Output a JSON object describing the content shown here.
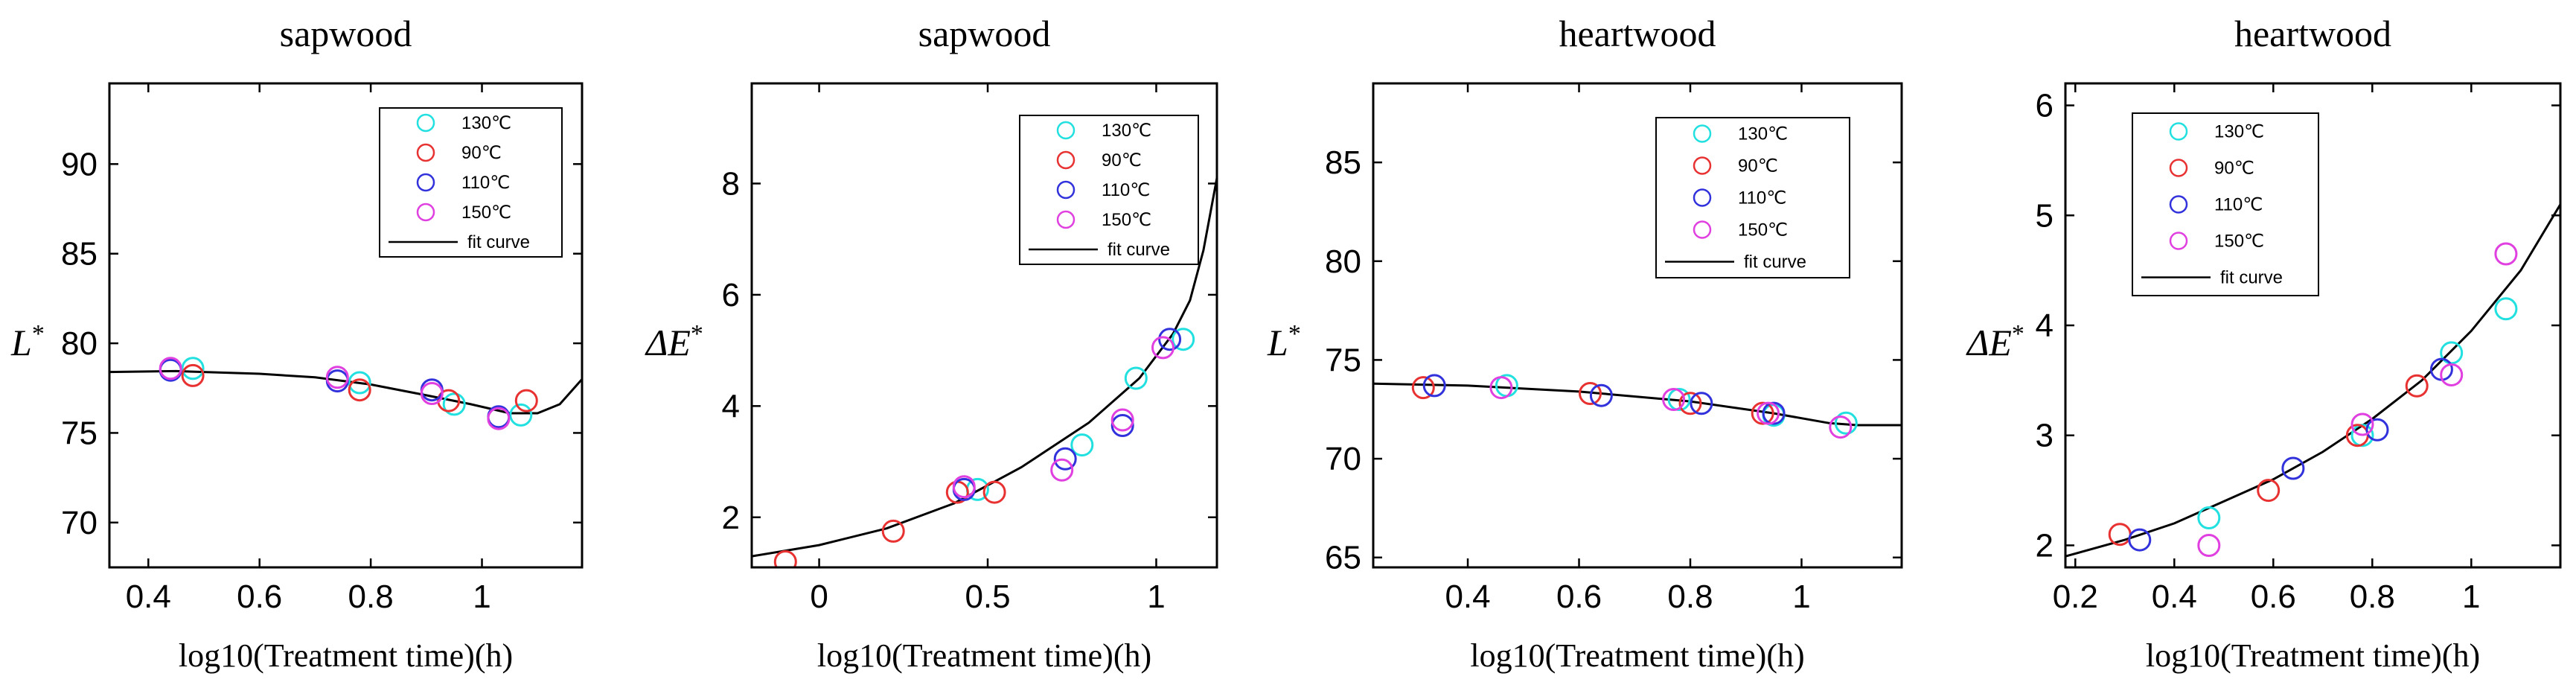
{
  "colors": {
    "130C": "#22e0e0",
    "90C": "#e83232",
    "110C": "#3232dc",
    "150C": "#e040e0",
    "fit": "#000000"
  },
  "chart_data": [
    {
      "type": "scatter",
      "title": "sapwood",
      "xlabel": "log10(Treatment time)(h)",
      "ylabel": "L",
      "ylabel_sup": "*",
      "xlim": [
        0.33,
        1.18
      ],
      "ylim": [
        67.5,
        94.5
      ],
      "xticks": [
        0.4,
        0.6,
        0.8,
        1.0
      ],
      "xtick_labels": [
        "0.4",
        "0.6",
        "0.8",
        "1"
      ],
      "yticks": [
        70,
        75,
        80,
        85,
        90
      ],
      "ytick_labels": [
        "70",
        "75",
        "80",
        "85",
        "90"
      ],
      "legend": [
        "130℃",
        "90℃",
        "110℃",
        "150℃",
        "fit curve"
      ],
      "series": [
        {
          "name": "130℃",
          "key": "130C",
          "points": [
            [
              0.48,
              78.6
            ],
            [
              0.78,
              77.8
            ],
            [
              0.95,
              76.6
            ],
            [
              1.07,
              76.0
            ]
          ]
        },
        {
          "name": "90℃",
          "key": "90C",
          "points": [
            [
              0.48,
              78.2
            ],
            [
              0.78,
              77.4
            ],
            [
              0.94,
              76.8
            ],
            [
              1.08,
              76.8
            ]
          ]
        },
        {
          "name": "110℃",
          "key": "110C",
          "points": [
            [
              0.44,
              78.5
            ],
            [
              0.74,
              77.9
            ],
            [
              0.91,
              77.4
            ],
            [
              1.03,
              75.9
            ]
          ]
        },
        {
          "name": "150℃",
          "key": "150C",
          "points": [
            [
              0.44,
              78.6
            ],
            [
              0.74,
              78.1
            ],
            [
              0.91,
              77.2
            ],
            [
              1.03,
              75.8
            ]
          ]
        }
      ],
      "fit_curve": [
        [
          0.33,
          78.4
        ],
        [
          0.45,
          78.45
        ],
        [
          0.6,
          78.3
        ],
        [
          0.7,
          78.1
        ],
        [
          0.8,
          77.7
        ],
        [
          0.9,
          77.1
        ],
        [
          0.98,
          76.6
        ],
        [
          1.05,
          76.1
        ],
        [
          1.1,
          76.1
        ],
        [
          1.14,
          76.6
        ],
        [
          1.18,
          78.0
        ]
      ]
    },
    {
      "type": "scatter",
      "title": "sapwood",
      "xlabel": "log10(Treatment time)(h)",
      "ylabel": "ΔE",
      "ylabel_sup": "*",
      "xlim": [
        -0.2,
        1.18
      ],
      "ylim": [
        1.1,
        9.8
      ],
      "xticks": [
        0.0,
        0.5,
        1.0
      ],
      "xtick_labels": [
        "0",
        "0.5",
        "1"
      ],
      "yticks": [
        2,
        4,
        6,
        8
      ],
      "ytick_labels": [
        "2",
        "4",
        "6",
        "8"
      ],
      "legend": [
        "130℃",
        "90℃",
        "110℃",
        "150℃",
        "fit curve"
      ],
      "series": [
        {
          "name": "130℃",
          "key": "130C",
          "points": [
            [
              0.47,
              2.5
            ],
            [
              0.78,
              3.3
            ],
            [
              0.94,
              4.5
            ],
            [
              1.08,
              5.2
            ]
          ]
        },
        {
          "name": "90℃",
          "key": "90C",
          "points": [
            [
              -0.1,
              1.2
            ],
            [
              0.22,
              1.75
            ],
            [
              0.41,
              2.45
            ],
            [
              0.52,
              2.45
            ]
          ]
        },
        {
          "name": "110℃",
          "key": "110C",
          "points": [
            [
              0.43,
              2.5
            ],
            [
              0.73,
              3.05
            ],
            [
              0.9,
              3.65
            ],
            [
              1.04,
              5.2
            ]
          ]
        },
        {
          "name": "150℃",
          "key": "150C",
          "points": [
            [
              0.43,
              2.55
            ],
            [
              0.72,
              2.85
            ],
            [
              0.9,
              3.75
            ],
            [
              1.02,
              5.05
            ]
          ]
        }
      ],
      "fit_curve": [
        [
          -0.2,
          1.3
        ],
        [
          0.0,
          1.5
        ],
        [
          0.2,
          1.8
        ],
        [
          0.4,
          2.25
        ],
        [
          0.6,
          2.9
        ],
        [
          0.8,
          3.7
        ],
        [
          0.95,
          4.5
        ],
        [
          1.05,
          5.3
        ],
        [
          1.1,
          5.9
        ],
        [
          1.14,
          6.8
        ],
        [
          1.18,
          8.1
        ]
      ]
    },
    {
      "type": "scatter",
      "title": "heartwood",
      "xlabel": "log10(Treatment time)(h)",
      "ylabel": "L",
      "ylabel_sup": "*",
      "xlim": [
        0.23,
        1.18
      ],
      "ylim": [
        64.5,
        89.0
      ],
      "xticks": [
        0.4,
        0.6,
        0.8,
        1.0
      ],
      "xtick_labels": [
        "0.4",
        "0.6",
        "0.8",
        "1"
      ],
      "yticks": [
        65,
        70,
        75,
        80,
        85
      ],
      "ytick_labels": [
        "65",
        "70",
        "75",
        "80",
        "85"
      ],
      "legend": [
        "130℃",
        "90℃",
        "110℃",
        "150℃",
        "fit curve"
      ],
      "series": [
        {
          "name": "130℃",
          "key": "130C",
          "points": [
            [
              0.47,
              73.7
            ],
            [
              0.78,
              73.0
            ],
            [
              0.95,
              72.2
            ],
            [
              1.08,
              71.8
            ]
          ]
        },
        {
          "name": "90℃",
          "key": "90C",
          "points": [
            [
              0.32,
              73.6
            ],
            [
              0.62,
              73.3
            ],
            [
              0.8,
              72.8
            ],
            [
              0.93,
              72.3
            ]
          ]
        },
        {
          "name": "110℃",
          "key": "110C",
          "points": [
            [
              0.34,
              73.7
            ],
            [
              0.64,
              73.2
            ],
            [
              0.82,
              72.8
            ],
            [
              0.95,
              72.3
            ]
          ]
        },
        {
          "name": "150℃",
          "key": "150C",
          "points": [
            [
              0.46,
              73.6
            ],
            [
              0.77,
              73.0
            ],
            [
              0.94,
              72.3
            ],
            [
              1.07,
              71.6
            ]
          ]
        }
      ],
      "fit_curve": [
        [
          0.23,
          73.8
        ],
        [
          0.4,
          73.7
        ],
        [
          0.6,
          73.4
        ],
        [
          0.8,
          72.9
        ],
        [
          0.95,
          72.3
        ],
        [
          1.05,
          71.8
        ],
        [
          1.1,
          71.7
        ],
        [
          1.18,
          71.7
        ]
      ]
    },
    {
      "type": "scatter",
      "title": "heartwood",
      "xlabel": "log10(Treatment time)(h)",
      "ylabel": "ΔE",
      "ylabel_sup": "*",
      "xlim": [
        0.18,
        1.18
      ],
      "ylim": [
        1.8,
        6.2
      ],
      "xticks": [
        0.2,
        0.4,
        0.6,
        0.8,
        1.0
      ],
      "xtick_labels": [
        "0.2",
        "0.4",
        "0.6",
        "0.8",
        "1"
      ],
      "yticks": [
        2,
        3,
        4,
        5,
        6
      ],
      "ytick_labels": [
        "2",
        "3",
        "4",
        "5",
        "6"
      ],
      "legend": [
        "130℃",
        "90℃",
        "110℃",
        "150℃",
        "fit curve"
      ],
      "series": [
        {
          "name": "130℃",
          "key": "130C",
          "points": [
            [
              0.47,
              2.25
            ],
            [
              0.78,
              3.0
            ],
            [
              0.96,
              3.75
            ],
            [
              1.07,
              4.15
            ]
          ]
        },
        {
          "name": "90℃",
          "key": "90C",
          "points": [
            [
              0.29,
              2.1
            ],
            [
              0.59,
              2.5
            ],
            [
              0.77,
              3.0
            ],
            [
              0.89,
              3.45
            ]
          ]
        },
        {
          "name": "110℃",
          "key": "110C",
          "points": [
            [
              0.33,
              2.05
            ],
            [
              0.64,
              2.7
            ],
            [
              0.81,
              3.05
            ],
            [
              0.94,
              3.6
            ]
          ]
        },
        {
          "name": "150℃",
          "key": "150C",
          "points": [
            [
              0.47,
              2.0
            ],
            [
              0.78,
              3.1
            ],
            [
              0.96,
              3.55
            ],
            [
              1.07,
              4.65
            ]
          ]
        }
      ],
      "fit_curve": [
        [
          0.18,
          1.9
        ],
        [
          0.3,
          2.05
        ],
        [
          0.4,
          2.2
        ],
        [
          0.5,
          2.4
        ],
        [
          0.6,
          2.6
        ],
        [
          0.7,
          2.85
        ],
        [
          0.8,
          3.15
        ],
        [
          0.9,
          3.5
        ],
        [
          1.0,
          3.95
        ],
        [
          1.1,
          4.5
        ],
        [
          1.18,
          5.1
        ]
      ]
    }
  ]
}
